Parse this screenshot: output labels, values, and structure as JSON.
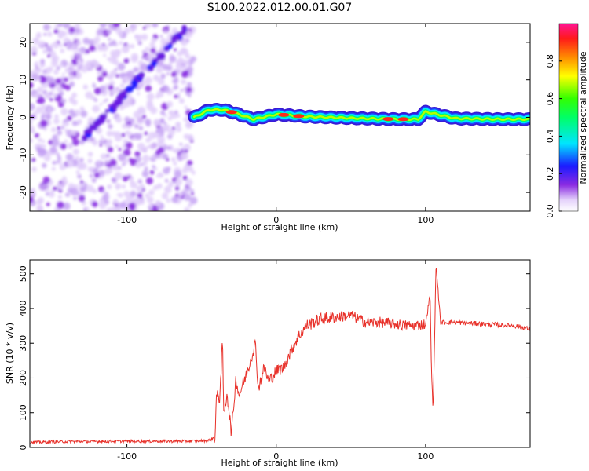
{
  "title": "S100.2022.012.00.01.G07",
  "chart_data": [
    {
      "type": "heatmap",
      "xlabel": "Height of straight line (km)",
      "ylabel": "Frequency (Hz)",
      "xlim": [
        -165,
        170
      ],
      "ylim": [
        -25,
        25
      ],
      "x_ticks": [
        -100,
        0,
        100
      ],
      "y_ticks": [
        -20,
        -10,
        0,
        10,
        20
      ],
      "colorbar": {
        "label": "Normalized spectral amplitude",
        "range": [
          0.0,
          1.0
        ],
        "ticks": [
          "0.0",
          "0.2",
          "0.4",
          "0.6",
          "0.8"
        ],
        "colors": [
          "#ffffff",
          "#e4d2fb",
          "#8a2be2",
          "#1b1bff",
          "#00e5ff",
          "#00ff66",
          "#33ff00",
          "#ffff00",
          "#ff8c00",
          "#ff1a1a",
          "#ff1493"
        ]
      },
      "noise_region_x": [
        -165,
        -55
      ],
      "diagonal_feature": {
        "x": [
          -130,
          -60
        ],
        "y": [
          -6,
          24
        ]
      },
      "ridge": {
        "x": [
          -55,
          -45,
          -35,
          -25,
          -15,
          0,
          20,
          50,
          80,
          95,
          100,
          120,
          150,
          170
        ],
        "y": [
          0.0,
          2.0,
          2.0,
          0.8,
          -0.5,
          0.8,
          0.2,
          -0.2,
          -0.5,
          -0.5,
          1.5,
          -0.3,
          -0.5,
          -0.5
        ],
        "hot_spots": [
          -30,
          5,
          15,
          75,
          85
        ]
      }
    },
    {
      "type": "line",
      "xlabel": "Height of straight line (km)",
      "ylabel": "SNR (10 * v/v)",
      "xlim": [
        -165,
        170
      ],
      "ylim": [
        0,
        540
      ],
      "x_ticks": [
        -100,
        0,
        100
      ],
      "y_ticks": [
        0,
        100,
        200,
        300,
        400,
        500
      ],
      "color": "#e8312a",
      "x": [
        -165,
        -140,
        -100,
        -60,
        -45,
        -41,
        -40,
        -38,
        -36,
        -35,
        -33,
        -30,
        -27,
        -25,
        -20,
        -14,
        -12,
        -8,
        -5,
        0,
        5,
        10,
        15,
        20,
        30,
        40,
        50,
        55,
        60,
        70,
        80,
        90,
        100,
        103,
        104,
        105,
        106,
        107,
        110,
        120,
        140,
        160,
        170
      ],
      "y": [
        15,
        17,
        18,
        18,
        20,
        30,
        150,
        140,
        300,
        80,
        160,
        40,
        200,
        150,
        210,
        300,
        170,
        230,
        190,
        220,
        230,
        280,
        320,
        350,
        370,
        375,
        380,
        370,
        360,
        360,
        355,
        350,
        355,
        440,
        210,
        105,
        300,
        530,
        360,
        360,
        355,
        350,
        340
      ]
    }
  ]
}
